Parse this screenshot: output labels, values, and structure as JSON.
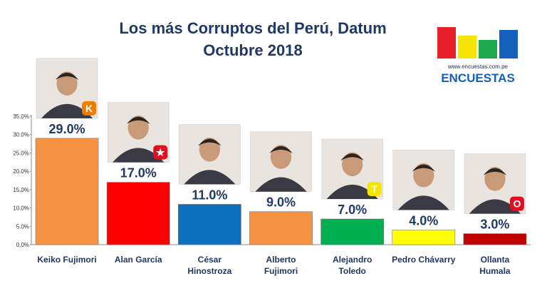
{
  "title_line1": "Los más Corruptos del Perú, Datum",
  "title_line2": "Octubre 2018",
  "logo": {
    "url_text": "www.encuestas.com.pe",
    "brand": "ENCUESTAS",
    "bar_colors": [
      "#e8202a",
      "#f5e400",
      "#19a84b",
      "#1560bd"
    ]
  },
  "colors": {
    "title": "#1f3864",
    "value_label": "#1f3864"
  },
  "chart_data": {
    "type": "bar",
    "categories": [
      [
        "Keiko Fujimori"
      ],
      [
        "Alan García"
      ],
      [
        "César",
        "Hinostroza"
      ],
      [
        "Alberto",
        "Fujimori"
      ],
      [
        "Alejandro",
        "Toledo"
      ],
      [
        "Pedro Chávarry"
      ],
      [
        "Ollanta",
        "Humala"
      ]
    ],
    "values": [
      29.0,
      17.0,
      11.0,
      9.0,
      7.0,
      4.0,
      3.0
    ],
    "value_labels": [
      "29.0%",
      "17.0%",
      "11.0%",
      "9.0%",
      "7.0%",
      "4.0%",
      "3.0%"
    ],
    "bar_colors": [
      "#f59343",
      "#ff0000",
      "#0b70c0",
      "#f59343",
      "#00b050",
      "#ffff00",
      "#c00000"
    ],
    "badges": [
      "K",
      "★",
      "",
      "",
      "T",
      "",
      "O"
    ],
    "badge_colors": [
      "#f07c00",
      "#e01020",
      "",
      "",
      "#f5e400",
      "",
      "#e01020"
    ],
    "yticks": [
      "0.0%",
      "5.0%",
      "10.0%",
      "15.0%",
      "20.0%",
      "25.0%",
      "30.0%",
      "35.0%"
    ],
    "ylim": [
      0,
      35
    ],
    "grid": false,
    "legend": "none"
  }
}
